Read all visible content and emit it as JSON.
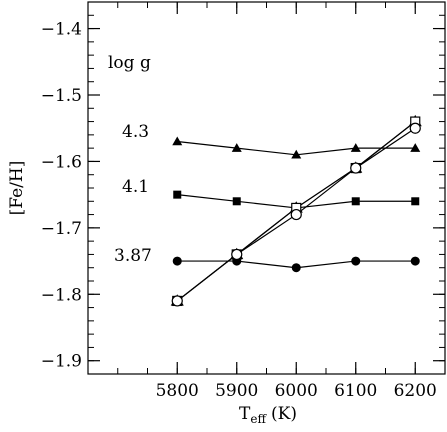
{
  "chart_data": {
    "type": "line",
    "title": "",
    "xlabel": "T",
    "xlabel_subscript": "eff",
    "xlabel_unit": "(K)",
    "ylabel": "[Fe/H]",
    "xlim": [
      5650,
      6250
    ],
    "ylim": [
      -1.92,
      -1.36
    ],
    "xticks": [
      5800,
      5900,
      6000,
      6100,
      6200
    ],
    "xtick_labels": [
      "5800",
      "5900",
      "6000",
      "6100",
      "6200"
    ],
    "yticks": [
      -1.9,
      -1.8,
      -1.7,
      -1.6,
      -1.5,
      -1.4
    ],
    "ytick_labels": [
      "−1.9",
      "−1.8",
      "−1.7",
      "−1.6",
      "−1.5",
      "−1.4"
    ],
    "x_minor_step": 50,
    "y_minor_step": 0.02,
    "grid": false,
    "legend_heading": "log g",
    "series": [
      {
        "name": "4.3",
        "marker": "triangle-filled",
        "x": [
          5800,
          5900,
          6000,
          6100,
          6200
        ],
        "values": [
          -1.57,
          -1.58,
          -1.59,
          -1.58,
          -1.58
        ]
      },
      {
        "name": "4.1",
        "marker": "square-filled",
        "x": [
          5800,
          5900,
          6000,
          6100,
          6200
        ],
        "values": [
          -1.65,
          -1.66,
          -1.67,
          -1.66,
          -1.66
        ]
      },
      {
        "name": "3.87",
        "marker": "circle-filled",
        "x": [
          5800,
          5900,
          6000,
          6100,
          6200
        ],
        "values": [
          -1.75,
          -1.75,
          -1.76,
          -1.75,
          -1.75
        ]
      },
      {
        "name": "",
        "marker": "triangle-open",
        "x": [
          5800,
          5900,
          6000,
          6100,
          6200
        ],
        "values": [
          -1.81,
          -1.74,
          -1.67,
          -1.61,
          -1.54
        ]
      },
      {
        "name": "",
        "marker": "square-open",
        "x": [
          5800,
          5900,
          6000,
          6100,
          6200
        ],
        "values": [
          -1.81,
          -1.74,
          -1.67,
          -1.61,
          -1.54
        ]
      },
      {
        "name": "",
        "marker": "circle-open",
        "x": [
          5800,
          5900,
          6000,
          6100,
          6200
        ],
        "values": [
          -1.81,
          -1.74,
          -1.68,
          -1.61,
          -1.55
        ]
      }
    ]
  }
}
